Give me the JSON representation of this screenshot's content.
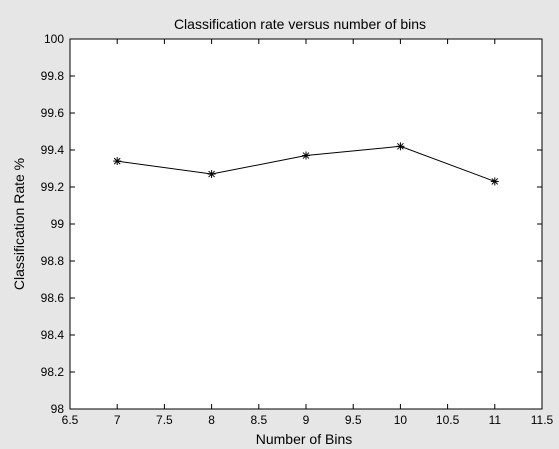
{
  "chart_data": {
    "type": "line",
    "title": "Classification rate versus number of bins",
    "xlabel": "Number of Bins",
    "ylabel": "Classification Rate %",
    "xlim": [
      6.5,
      11.5
    ],
    "ylim": [
      98,
      100
    ],
    "xticks": [
      "6.5",
      "7",
      "7.5",
      "8",
      "8.5",
      "9",
      "9.5",
      "10",
      "10.5",
      "11",
      "11.5"
    ],
    "yticks": [
      "98",
      "98.2",
      "98.4",
      "98.6",
      "98.8",
      "99",
      "99.2",
      "99.4",
      "99.6",
      "99.8",
      "100"
    ],
    "grid": false,
    "marker": "asterisk",
    "series": [
      {
        "x": [
          7,
          8,
          9,
          10,
          11
        ],
        "values": [
          99.34,
          99.27,
          99.37,
          99.42,
          99.23
        ]
      }
    ],
    "colors": {
      "background": "#e6e6e6",
      "plot_area": "#ffffff",
      "line": "#000000"
    }
  }
}
